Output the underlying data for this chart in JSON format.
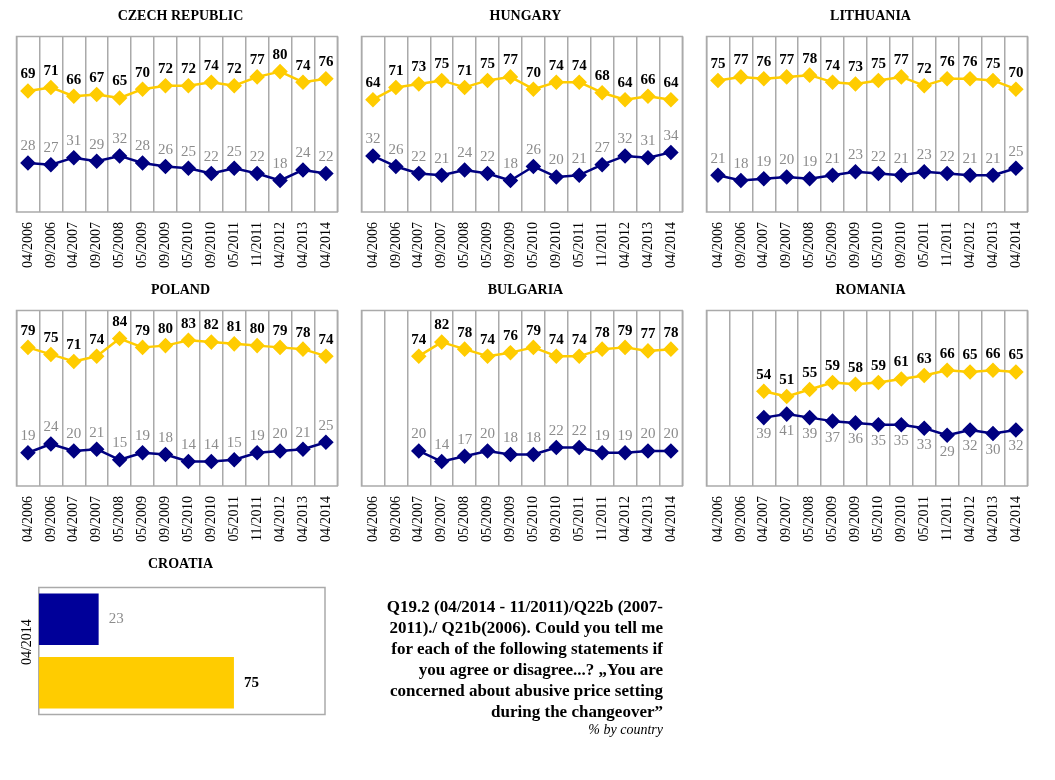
{
  "chart_data": [
    {
      "type": "line",
      "title": "CZECH  REPUBLIC",
      "categories": [
        "04/2006",
        "09/2006",
        "04/2007",
        "09/2007",
        "05/2008",
        "05/2009",
        "09/2009",
        "05/2010",
        "09/2010",
        "05/2011",
        "11/2011",
        "04/2012",
        "04/2013",
        "04/2014"
      ],
      "series": [
        {
          "color": "#ffcc00",
          "values": [
            69,
            71,
            66,
            67,
            65,
            70,
            72,
            72,
            74,
            72,
            77,
            80,
            74,
            76
          ]
        },
        {
          "color": "#000080",
          "values": [
            28,
            27,
            31,
            29,
            32,
            28,
            26,
            25,
            22,
            25,
            22,
            18,
            24,
            22
          ]
        }
      ],
      "ylim": [
        0,
        100
      ],
      "tick_labels": "x",
      "grid": "x",
      "marker": "diamond",
      "data_labels": true
    },
    {
      "type": "line",
      "title": "HUNGARY",
      "categories": [
        "04/2006",
        "09/2006",
        "04/2007",
        "09/2007",
        "05/2008",
        "05/2009",
        "09/2009",
        "05/2010",
        "09/2010",
        "05/2011",
        "11/2011",
        "04/2012",
        "04/2013",
        "04/2014"
      ],
      "series": [
        {
          "color": "#ffcc00",
          "values": [
            64,
            71,
            73,
            75,
            71,
            75,
            77,
            70,
            74,
            74,
            68,
            64,
            66,
            64
          ]
        },
        {
          "color": "#000080",
          "values": [
            32,
            26,
            22,
            21,
            24,
            22,
            18,
            26,
            20,
            21,
            27,
            32,
            31,
            34
          ]
        }
      ],
      "ylim": [
        0,
        100
      ],
      "tick_labels": "x",
      "grid": "x",
      "marker": "diamond",
      "data_labels": true
    },
    {
      "type": "line",
      "title": "LITHUANIA",
      "categories": [
        "04/2006",
        "09/2006",
        "04/2007",
        "09/2007",
        "05/2008",
        "05/2009",
        "09/2009",
        "05/2010",
        "09/2010",
        "05/2011",
        "11/2011",
        "04/2012",
        "04/2013",
        "04/2014"
      ],
      "series": [
        {
          "color": "#ffcc00",
          "values": [
            75,
            77,
            76,
            77,
            78,
            74,
            73,
            75,
            77,
            72,
            76,
            76,
            75,
            70
          ]
        },
        {
          "color": "#000080",
          "values": [
            21,
            18,
            19,
            20,
            19,
            21,
            23,
            22,
            21,
            23,
            22,
            21,
            21,
            25
          ]
        }
      ],
      "ylim": [
        0,
        100
      ],
      "tick_labels": "x",
      "grid": "x",
      "marker": "diamond",
      "data_labels": true
    },
    {
      "type": "line",
      "title": "POLAND",
      "categories": [
        "04/2006",
        "09/2006",
        "04/2007",
        "09/2007",
        "05/2008",
        "05/2009",
        "09/2009",
        "05/2010",
        "09/2010",
        "05/2011",
        "11/2011",
        "04/2012",
        "04/2013",
        "04/2014"
      ],
      "series": [
        {
          "color": "#ffcc00",
          "values": [
            79,
            75,
            71,
            74,
            84,
            79,
            80,
            83,
            82,
            81,
            80,
            79,
            78,
            74
          ]
        },
        {
          "color": "#000080",
          "values": [
            19,
            24,
            20,
            21,
            15,
            19,
            18,
            14,
            14,
            15,
            19,
            20,
            21,
            25
          ]
        }
      ],
      "ylim": [
        0,
        100
      ],
      "tick_labels": "x",
      "grid": "x",
      "marker": "diamond",
      "data_labels": true
    },
    {
      "type": "line",
      "title": "BULGARIA",
      "categories": [
        "04/2006",
        "09/2006",
        "04/2007",
        "09/2007",
        "05/2008",
        "05/2009",
        "09/2009",
        "05/2010",
        "09/2010",
        "05/2011",
        "11/2011",
        "04/2012",
        "04/2013",
        "04/2014"
      ],
      "series": [
        {
          "color": "#ffcc00",
          "values": [
            null,
            null,
            74,
            82,
            78,
            74,
            76,
            79,
            74,
            74,
            78,
            79,
            77,
            78
          ]
        },
        {
          "color": "#000080",
          "values": [
            null,
            null,
            20,
            14,
            17,
            20,
            18,
            18,
            22,
            22,
            19,
            19,
            20,
            20
          ]
        }
      ],
      "ylim": [
        0,
        100
      ],
      "tick_labels": "x",
      "grid": "x",
      "marker": "diamond",
      "data_labels": true
    },
    {
      "type": "line",
      "title": "ROMANIA",
      "categories": [
        "04/2006",
        "09/2006",
        "04/2007",
        "09/2007",
        "05/2008",
        "05/2009",
        "09/2009",
        "05/2010",
        "09/2010",
        "05/2011",
        "11/2011",
        "04/2012",
        "04/2013",
        "04/2014"
      ],
      "series": [
        {
          "color": "#ffcc00",
          "values": [
            null,
            null,
            54,
            51,
            55,
            59,
            58,
            59,
            61,
            63,
            66,
            65,
            66,
            65
          ]
        },
        {
          "color": "#000080",
          "values": [
            null,
            null,
            39,
            41,
            39,
            37,
            36,
            35,
            35,
            33,
            29,
            32,
            30,
            32
          ]
        }
      ],
      "ylim": [
        0,
        100
      ],
      "tick_labels": "x",
      "grid": "x",
      "marker": "diamond",
      "data_labels": true
    },
    {
      "type": "bar",
      "title": "CROATIA",
      "orientation": "horizontal",
      "categories": [
        "04/2014",
        null
      ],
      "series": [
        {
          "colors": [
            "#000099",
            "#ffcc00"
          ],
          "values": [
            23,
            75
          ]
        }
      ],
      "xlim": [
        0,
        110
      ],
      "tick_labels": "y",
      "data_labels": true
    },
    {
      "type": "other",
      "annotations": [
        "Q19.2 (04/2014 - 11/2011)/Q22b (2007-2011)./ Q21b(2006).  Could you tell me for each of the following statements if you agree or disagree...? „You are concerned about abusive price setting during the changeover”",
        "% by country"
      ]
    }
  ]
}
